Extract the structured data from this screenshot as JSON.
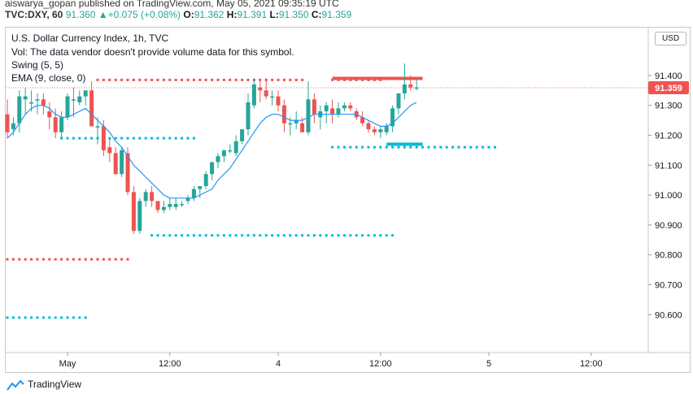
{
  "header": {
    "publish_line": "aiswarya_gopan published on TradingView.com, May 05, 2021 09:35:19 UTC",
    "symbol": "TVC:DXY, 60",
    "last": "91.360",
    "change": "+0.075 (+0.08%)",
    "o_label": "O:",
    "o_value": "91.362",
    "h_label": "H:",
    "h_value": "91.391",
    "l_label": "L:",
    "l_value": "91.350",
    "c_label": "C:",
    "c_value": "91.359",
    "up_arrow": "▲"
  },
  "legend": {
    "title": "U.S. Dollar Currency Index, 1h, TVC",
    "vol_note": "Vol: The data vendor doesn't provide volume data for this symbol.",
    "swing": "Swing (5, 5)",
    "ema": "EMA (9, close, 0)"
  },
  "currency_button": "USD",
  "footer": {
    "brand": "TradingView"
  },
  "colors": {
    "up": "#26a69a",
    "down": "#ef5350",
    "ema": "#2196f3",
    "swing_high": "#ef5350",
    "swing_low": "#00bcd4"
  },
  "chart_data": {
    "type": "candlestick",
    "price_label": "91.359",
    "ylim": [
      90.473,
      91.56
    ],
    "yticks": [
      "91.400",
      "91.300",
      "91.200",
      "91.100",
      "91.000",
      "90.900",
      "90.800",
      "90.700",
      "90.600"
    ],
    "x_ticks": [
      {
        "label": "May",
        "bar": 10
      },
      {
        "label": "12:00",
        "bar": 27
      },
      {
        "label": "4",
        "bar": 45
      },
      {
        "label": "12:00",
        "bar": 62
      },
      {
        "label": "5",
        "bar": 80
      },
      {
        "label": "12:00",
        "bar": 97
      }
    ],
    "candles": [
      [
        91.27,
        91.32,
        91.19,
        91.21
      ],
      [
        91.22,
        91.26,
        91.2,
        91.24
      ],
      [
        91.24,
        91.35,
        91.21,
        91.33
      ],
      [
        91.32,
        91.36,
        91.27,
        91.33
      ],
      [
        91.31,
        91.35,
        91.28,
        91.31
      ],
      [
        91.32,
        91.34,
        91.27,
        91.32
      ],
      [
        91.32,
        91.34,
        91.27,
        91.3
      ],
      [
        91.28,
        91.31,
        91.22,
        91.26
      ],
      [
        91.26,
        91.29,
        91.19,
        91.21
      ],
      [
        91.21,
        91.28,
        91.19,
        91.26
      ],
      [
        91.26,
        91.34,
        91.25,
        91.33
      ],
      [
        91.32,
        91.36,
        91.26,
        91.32
      ],
      [
        91.31,
        91.35,
        91.3,
        91.33
      ],
      [
        91.33,
        91.35,
        91.3,
        91.35
      ],
      [
        91.35,
        91.38,
        91.24,
        91.23
      ],
      [
        91.23,
        91.26,
        91.17,
        91.23
      ],
      [
        91.23,
        91.25,
        91.13,
        91.15
      ],
      [
        91.16,
        91.19,
        91.11,
        91.14
      ],
      [
        91.14,
        91.16,
        91.07,
        91.07
      ],
      [
        91.07,
        91.16,
        91.06,
        91.15
      ],
      [
        91.14,
        91.16,
        91.0,
        91.01
      ],
      [
        91.01,
        91.03,
        90.87,
        90.88
      ],
      [
        90.88,
        90.99,
        90.87,
        90.98
      ],
      [
        90.98,
        91.02,
        90.96,
        91.01
      ],
      [
        91.01,
        91.03,
        90.96,
        90.98
      ],
      [
        90.98,
        90.98,
        90.94,
        90.95
      ],
      [
        90.95,
        90.98,
        90.94,
        90.96
      ],
      [
        90.96,
        90.99,
        90.95,
        90.97
      ],
      [
        90.96,
        90.99,
        90.95,
        90.97
      ],
      [
        90.97,
        90.98,
        90.96,
        90.97
      ],
      [
        90.98,
        91.0,
        90.97,
        90.99
      ],
      [
        90.99,
        91.03,
        90.98,
        91.02
      ],
      [
        91.02,
        91.03,
        90.99,
        91.03
      ],
      [
        91.03,
        91.08,
        91.02,
        91.07
      ],
      [
        91.07,
        91.11,
        91.05,
        91.11
      ],
      [
        91.11,
        91.14,
        91.09,
        91.13
      ],
      [
        91.13,
        91.15,
        91.11,
        91.15
      ],
      [
        91.15,
        91.17,
        91.14,
        91.15
      ],
      [
        91.14,
        91.2,
        91.13,
        91.18
      ],
      [
        91.18,
        91.22,
        91.17,
        91.22
      ],
      [
        91.22,
        91.34,
        91.2,
        91.31
      ],
      [
        91.3,
        91.39,
        91.29,
        91.37
      ],
      [
        91.36,
        91.38,
        91.31,
        91.35
      ],
      [
        91.35,
        91.39,
        91.32,
        91.33
      ],
      [
        91.33,
        91.35,
        91.3,
        91.33
      ],
      [
        91.33,
        91.35,
        91.28,
        91.3
      ],
      [
        91.3,
        91.32,
        91.21,
        91.24
      ],
      [
        91.24,
        91.26,
        91.2,
        91.24
      ],
      [
        91.24,
        91.28,
        91.22,
        91.25
      ],
      [
        91.24,
        91.26,
        91.21,
        91.21
      ],
      [
        91.21,
        91.38,
        91.2,
        91.32
      ],
      [
        91.32,
        91.34,
        91.24,
        91.27
      ],
      [
        91.26,
        91.3,
        91.22,
        91.28
      ],
      [
        91.28,
        91.31,
        91.24,
        91.3
      ],
      [
        91.29,
        91.32,
        91.24,
        91.27
      ],
      [
        91.27,
        91.31,
        91.26,
        91.29
      ],
      [
        91.29,
        91.31,
        91.28,
        91.3
      ],
      [
        91.3,
        91.31,
        91.28,
        91.29
      ],
      [
        91.28,
        91.29,
        91.25,
        91.26
      ],
      [
        91.26,
        91.28,
        91.23,
        91.24
      ],
      [
        91.24,
        91.25,
        91.21,
        91.22
      ],
      [
        91.22,
        91.23,
        91.2,
        91.21
      ],
      [
        91.21,
        91.23,
        91.19,
        91.22
      ],
      [
        91.21,
        91.24,
        91.2,
        91.23
      ],
      [
        91.23,
        91.3,
        91.21,
        91.29
      ],
      [
        91.29,
        91.34,
        91.27,
        91.34
      ],
      [
        91.34,
        91.44,
        91.32,
        91.37
      ],
      [
        91.37,
        91.4,
        91.35,
        91.36
      ],
      [
        91.36,
        91.39,
        91.35,
        91.36
      ]
    ],
    "ema": [
      91.19,
      91.21,
      91.24,
      91.27,
      91.29,
      91.3,
      91.3,
      91.29,
      91.27,
      91.26,
      91.26,
      91.27,
      91.28,
      91.29,
      91.27,
      91.25,
      91.23,
      91.21,
      91.18,
      91.16,
      91.13,
      91.1,
      91.08,
      91.06,
      91.04,
      91.02,
      91.0,
      90.99,
      90.99,
      90.99,
      90.99,
      90.99,
      91.0,
      91.01,
      91.02,
      91.05,
      91.07,
      91.09,
      91.12,
      91.15,
      91.18,
      91.21,
      91.24,
      91.26,
      91.27,
      91.27,
      91.26,
      91.25,
      91.25,
      91.25,
      91.26,
      91.27,
      91.27,
      91.27,
      91.27,
      91.27,
      91.27,
      91.27,
      91.27,
      91.26,
      91.25,
      91.24,
      91.23,
      91.23,
      91.24,
      91.26,
      91.28,
      91.3,
      91.31
    ],
    "swing_dotted": [
      {
        "color": "high",
        "y": 91.385,
        "from": 15,
        "to": 49
      },
      {
        "color": "low",
        "y": 91.19,
        "from": 9,
        "to": 31
      },
      {
        "color": "high",
        "y": 91.385,
        "from": 54,
        "to": 62
      },
      {
        "color": "low",
        "y": 91.16,
        "from": 54,
        "to": 81
      },
      {
        "color": "low",
        "y": 90.865,
        "from": 24,
        "to": 64
      },
      {
        "color": "high",
        "y": 90.785,
        "from": 0,
        "to": 20
      },
      {
        "color": "low",
        "y": 90.59,
        "from": 0,
        "to": 13
      }
    ],
    "swing_solid": [
      {
        "color": "high",
        "y": 91.39,
        "from": 54,
        "to": 69
      },
      {
        "color": "low",
        "y": 91.17,
        "from": 63,
        "to": 69
      }
    ],
    "current_price": 91.359
  }
}
